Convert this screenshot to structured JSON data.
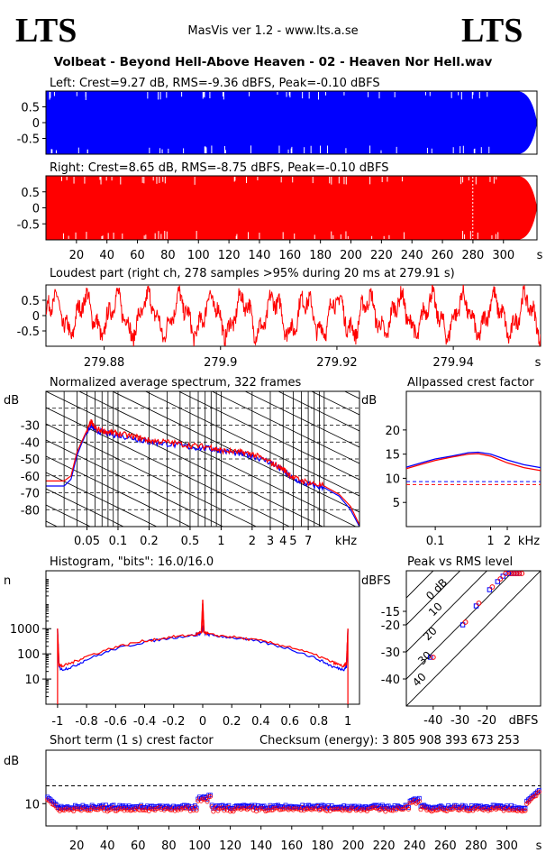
{
  "header": {
    "logo_left": "LTS",
    "logo_right": "LTS",
    "app_info": "MasVis ver 1.2 - www.lts.a.se",
    "file_title": "Volbeat - Beyond Hell-Above Heaven - 02 - Heaven Nor Hell.wav"
  },
  "colors": {
    "left": "#0000ff",
    "right": "#ff0000",
    "grid": "#000000"
  },
  "chart_data": [
    {
      "type": "area",
      "title": "Left: Crest=9.27 dB, RMS=-9.36 dBFS, Peak=-0.10 dBFS",
      "ylim": [
        -1,
        1
      ],
      "yticks": [
        {
          "label": "0.5",
          "v": 0.5
        },
        {
          "label": "0",
          "v": 0
        },
        {
          "label": "-0.5",
          "v": -0.5
        }
      ],
      "xlim": [
        0,
        322
      ],
      "series": [
        {
          "color": "#0000ff",
          "envelope": 0.99,
          "end_s": 322
        }
      ]
    },
    {
      "type": "area",
      "title": "Right: Crest=8.65 dB, RMS=-8.75 dBFS, Peak=-0.10 dBFS",
      "ylim": [
        -1,
        1
      ],
      "yticks": [
        {
          "label": "0.5",
          "v": 0.5
        },
        {
          "label": "0",
          "v": 0
        },
        {
          "label": "-0.5",
          "v": -0.5
        }
      ],
      "xlim": [
        0,
        322
      ],
      "xticks": [
        "20",
        "40",
        "60",
        "80",
        "100",
        "120",
        "140",
        "160",
        "180",
        "200",
        "220",
        "240",
        "260",
        "280",
        "300"
      ],
      "xunit": "s",
      "marker_s": 279.91,
      "series": [
        {
          "color": "#ff0000",
          "envelope": 0.99,
          "end_s": 322
        }
      ]
    },
    {
      "type": "line",
      "title": "Loudest part (right ch, 278 samples >95% during 20 ms at 279.91 s)",
      "xlim": [
        279.87,
        279.955
      ],
      "ylim": [
        -1,
        1
      ],
      "yticks": [
        {
          "label": "0.5",
          "v": 0.5
        },
        {
          "label": "0",
          "v": 0
        },
        {
          "label": "-0.5",
          "v": -0.5
        }
      ],
      "xticks": [
        {
          "label": "279.88",
          "v": 279.88
        },
        {
          "label": "279.9",
          "v": 279.9
        },
        {
          "label": "279.92",
          "v": 279.92
        },
        {
          "label": "279.94",
          "v": 279.94
        }
      ],
      "xunit": "s",
      "series": [
        {
          "color": "#ff0000"
        }
      ]
    },
    {
      "type": "line",
      "title": "Normalized average spectrum, 322 frames",
      "ylabel": "dB",
      "xscale": "log",
      "xlim": [
        0.02,
        22
      ],
      "ylim": [
        -90,
        -10
      ],
      "yticks": [
        -30,
        -40,
        -50,
        -60,
        -70,
        -80
      ],
      "xticks": [
        {
          "label": "0.05",
          "v": 0.05
        },
        {
          "label": "0.1",
          "v": 0.1
        },
        {
          "label": "0.2",
          "v": 0.2
        },
        {
          "label": "0.5",
          "v": 0.5
        },
        {
          "label": "1",
          "v": 1
        },
        {
          "label": "2",
          "v": 2
        },
        {
          "label": "3",
          "v": 3
        },
        {
          "label": "4",
          "v": 4
        },
        {
          "label": "5",
          "v": 5
        },
        {
          "label": "7",
          "v": 7
        }
      ],
      "xunit": "kHz",
      "series": [
        {
          "color": "#0000ff",
          "x": [
            0.02,
            0.03,
            0.035,
            0.04,
            0.045,
            0.05,
            0.055,
            0.06,
            0.08,
            0.1,
            0.15,
            0.2,
            0.3,
            0.5,
            0.8,
            1,
            1.5,
            2,
            3,
            4,
            5,
            7,
            10,
            14,
            18,
            22
          ],
          "y": [
            -66,
            -66,
            -62,
            -48,
            -40,
            -34,
            -30,
            -33,
            -35,
            -36,
            -38,
            -40,
            -41,
            -43,
            -44,
            -45,
            -47,
            -48,
            -52,
            -57,
            -62,
            -65,
            -67,
            -72,
            -80,
            -90
          ]
        },
        {
          "color": "#ff0000",
          "x": [
            0.02,
            0.03,
            0.035,
            0.04,
            0.045,
            0.05,
            0.055,
            0.06,
            0.08,
            0.1,
            0.15,
            0.2,
            0.3,
            0.5,
            0.8,
            1,
            1.5,
            2,
            3,
            4,
            5,
            7,
            10,
            14,
            18,
            22
          ],
          "y": [
            -63,
            -63,
            -60,
            -46,
            -39,
            -33,
            -28,
            -32,
            -34,
            -35,
            -37,
            -39,
            -40,
            -42,
            -43,
            -45,
            -46,
            -47,
            -52,
            -56,
            -61,
            -64,
            -66,
            -71,
            -78,
            -89
          ]
        }
      ]
    },
    {
      "type": "line",
      "title": "Allpassed crest factor",
      "ylabel": "dB",
      "xscale": "log",
      "xlim": [
        0.03,
        8
      ],
      "ylim": [
        0,
        28
      ],
      "yticks": [
        20,
        15,
        10,
        5
      ],
      "xticks": [
        {
          "label": "0.1",
          "v": 0.1
        },
        {
          "label": "1",
          "v": 1
        },
        {
          "label": "2",
          "v": 2
        }
      ],
      "xunit": "kHz",
      "hlines": [
        {
          "color": "#0000ff",
          "v": 9.3
        },
        {
          "color": "#ff0000",
          "v": 8.7
        }
      ],
      "series": [
        {
          "color": "#0000ff",
          "x": [
            0.03,
            0.06,
            0.1,
            0.2,
            0.4,
            0.6,
            1,
            2,
            4,
            8
          ],
          "y": [
            12.3,
            13.3,
            14.0,
            14.6,
            15.3,
            15.4,
            15.0,
            13.8,
            12.8,
            12.2
          ]
        },
        {
          "color": "#ff0000",
          "x": [
            0.03,
            0.06,
            0.1,
            0.2,
            0.4,
            0.6,
            1,
            2,
            4,
            8
          ],
          "y": [
            12.0,
            13.0,
            13.7,
            14.4,
            15.0,
            15.1,
            14.6,
            13.2,
            12.2,
            11.6
          ]
        }
      ]
    },
    {
      "type": "line",
      "title": "Histogram, \"bits\": 16.0/16.0",
      "ylabel": "n",
      "yscale": "log",
      "xlim": [
        -1.08,
        1.08
      ],
      "ylim": [
        1,
        200000
      ],
      "yticks": [
        {
          "label": "1000",
          "v": 1000
        },
        {
          "label": "100",
          "v": 100
        },
        {
          "label": "10",
          "v": 10
        }
      ],
      "xticks": [
        "-1",
        "-0.8",
        "-0.6",
        "-0.4",
        "-0.2",
        "0",
        "0.2",
        "0.4",
        "0.6",
        "0.8",
        "1"
      ],
      "series": [
        {
          "color": "#0000ff",
          "x": [
            -1,
            -0.99,
            -0.97,
            -0.9,
            -0.8,
            -0.6,
            -0.4,
            -0.2,
            -0.05,
            -0.01,
            0,
            0.01,
            0.05,
            0.2,
            0.4,
            0.6,
            0.8,
            0.9,
            0.97,
            0.99,
            1
          ],
          "y": [
            900,
            30,
            24,
            30,
            60,
            160,
            300,
            450,
            560,
            700,
            1300,
            700,
            560,
            450,
            300,
            160,
            60,
            30,
            24,
            30,
            900
          ]
        },
        {
          "color": "#ff0000",
          "x": [
            -1,
            -0.99,
            -0.97,
            -0.9,
            -0.8,
            -0.6,
            -0.4,
            -0.2,
            -0.05,
            -0.01,
            0,
            0.01,
            0.05,
            0.2,
            0.4,
            0.6,
            0.8,
            0.9,
            0.97,
            0.99,
            1
          ],
          "y": [
            1000,
            40,
            32,
            45,
            80,
            190,
            330,
            480,
            580,
            750,
            14000,
            750,
            580,
            480,
            330,
            190,
            80,
            45,
            32,
            40,
            1000
          ]
        }
      ]
    },
    {
      "type": "scatter",
      "title": "Peak vs RMS level",
      "ylabel": "dBFS",
      "xunit": "dBFS",
      "xlim": [
        -50,
        0
      ],
      "ylim": [
        -50,
        0
      ],
      "yticks": [
        -15,
        -20,
        -30,
        -40
      ],
      "xticks": [
        {
          "label": "-40",
          "v": -40
        },
        {
          "label": "-30",
          "v": -30
        },
        {
          "label": "-20",
          "v": -20
        }
      ],
      "diagonal_labels": [
        "40",
        "30",
        "20",
        "10",
        "0 dB"
      ],
      "series": [
        {
          "color": "#0000ff",
          "x": [
            -41,
            -29,
            -24,
            -19,
            -16,
            -14,
            -12,
            -11,
            -10,
            -9,
            -8
          ],
          "y": [
            -32,
            -20,
            -13,
            -7,
            -4,
            -2,
            -1,
            -1,
            -1,
            -1,
            -1
          ]
        },
        {
          "color": "#ff0000",
          "x": [
            -40,
            -28,
            -23,
            -18,
            -15,
            -13,
            -11,
            -10,
            -9,
            -8,
            -7
          ],
          "y": [
            -32,
            -19,
            -12,
            -6,
            -3,
            -1,
            -1,
            -1,
            -1,
            -1,
            -1
          ]
        }
      ]
    },
    {
      "type": "scatter",
      "title": "Short term (1 s) crest factor",
      "annotation": "Checksum (energy):  3 805 908 393 673 253",
      "ylabel": "dB",
      "xlim": [
        0,
        322
      ],
      "ylim": [
        5,
        22
      ],
      "yticks": [
        {
          "label": "10",
          "v": 10
        }
      ],
      "hline": 14,
      "xticks": [
        "20",
        "40",
        "60",
        "80",
        "100",
        "120",
        "140",
        "160",
        "180",
        "200",
        "220",
        "240",
        "260",
        "280",
        "300"
      ],
      "xunit": "s",
      "series": [
        {
          "color": "#0000ff"
        },
        {
          "color": "#ff0000"
        }
      ]
    }
  ]
}
